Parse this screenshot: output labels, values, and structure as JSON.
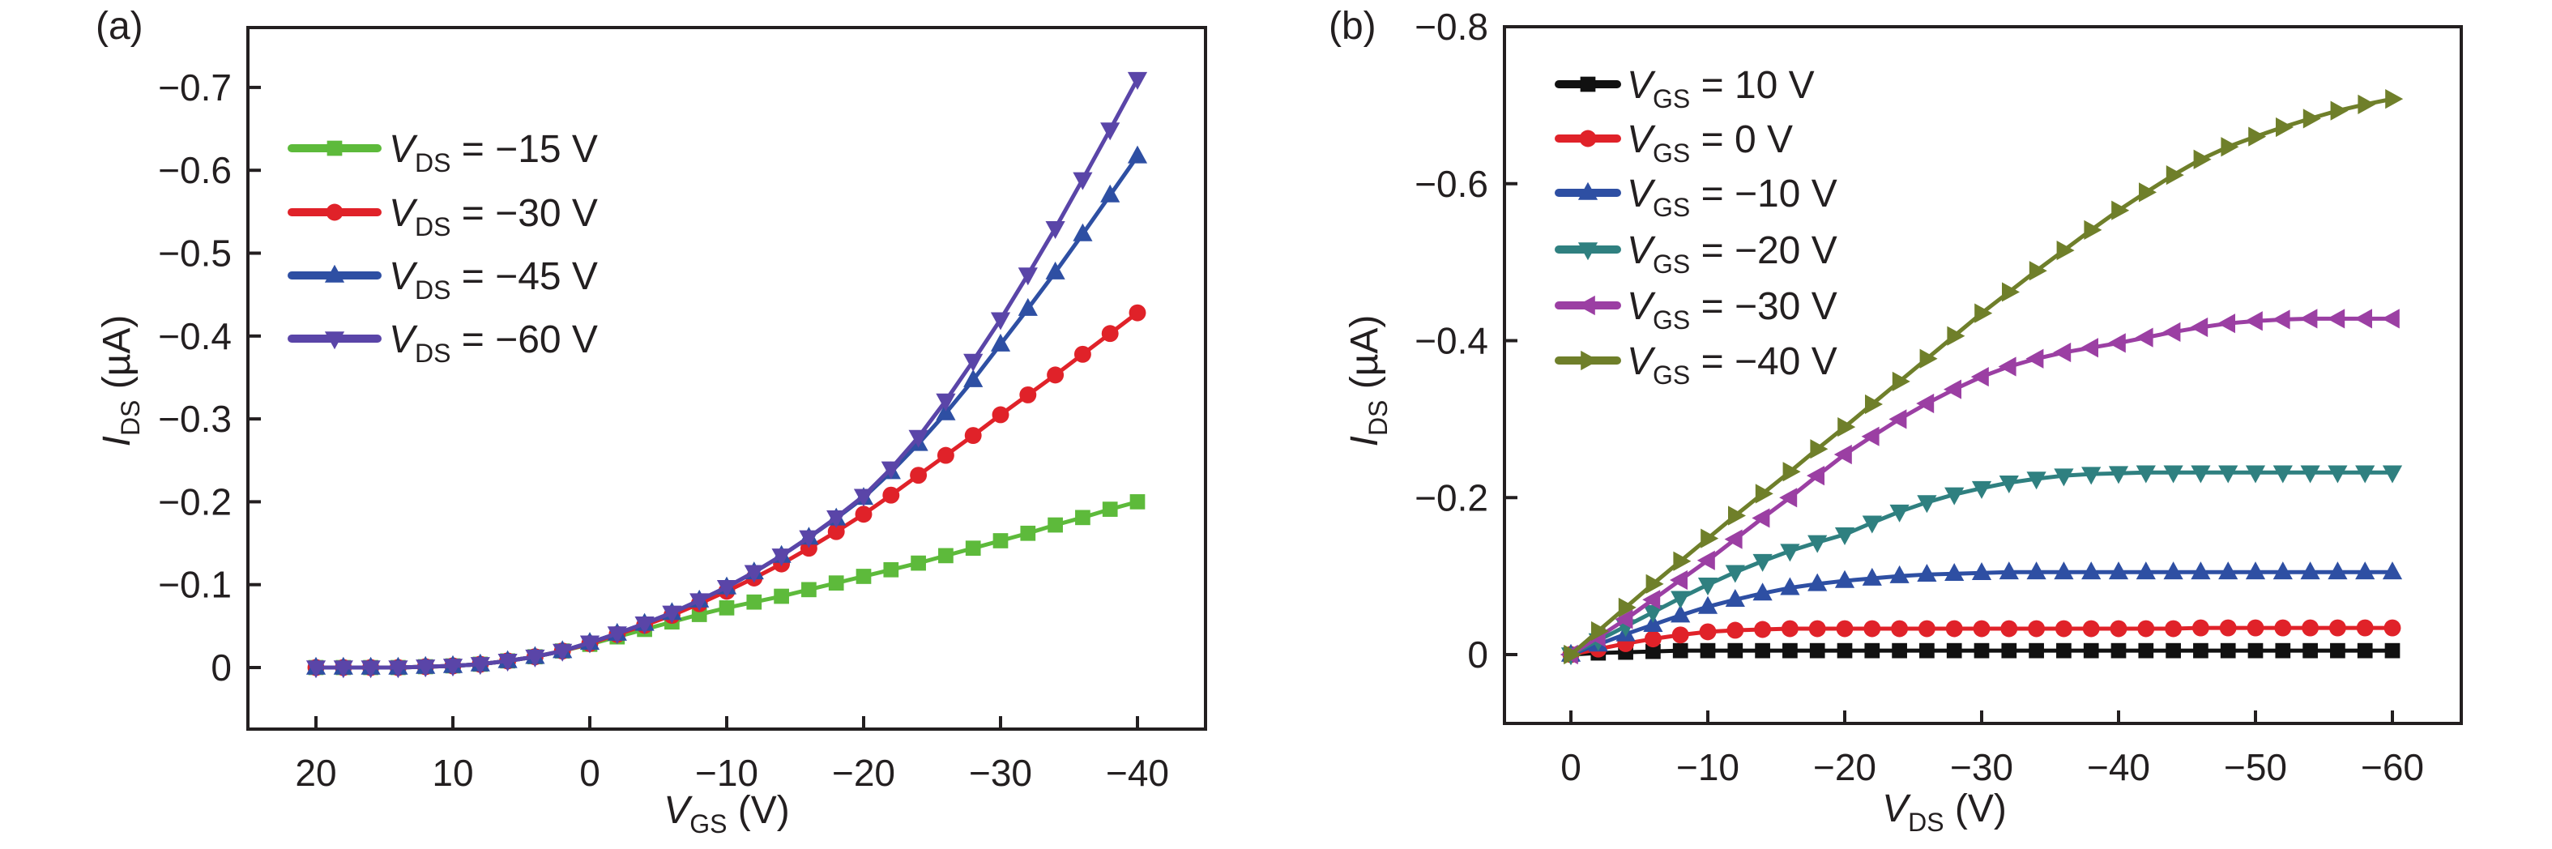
{
  "chart_data": [
    {
      "panel": "(a)",
      "type": "line",
      "title": "",
      "xlabel": {
        "main": "V",
        "sub": "GS",
        "unit": " (V)"
      },
      "ylabel": {
        "main": "I",
        "sub": "DS",
        "unit": " (µA)"
      },
      "xlim": [
        25,
        -45
      ],
      "ylim": [
        0.075,
        -0.77
      ],
      "xticks": [
        20,
        10,
        0,
        -10,
        -20,
        -30,
        -40
      ],
      "xtick_labels": [
        "20",
        "10",
        "0",
        "−10",
        "−20",
        "−30",
        "−40"
      ],
      "yticks": [
        0,
        -0.1,
        -0.2,
        -0.3,
        -0.4,
        -0.5,
        -0.6,
        -0.7
      ],
      "ytick_labels": [
        "0",
        "−0.1",
        "−0.2",
        "−0.3",
        "−0.4",
        "−0.5",
        "−0.6",
        "−0.7"
      ],
      "grid": false,
      "legend_position": "upper-left",
      "x": [
        20,
        18,
        16,
        14,
        12,
        10,
        8,
        6,
        4,
        2,
        0,
        -2,
        -4,
        -6,
        -8,
        -10,
        -12,
        -14,
        -16,
        -18,
        -20,
        -22,
        -24,
        -26,
        -28,
        -30,
        -32,
        -34,
        -36,
        -38,
        -40
      ],
      "series": [
        {
          "name": "V_DS = −15 V",
          "legend": {
            "main": "V",
            "sub": "DS",
            "rest": " = −15 V"
          },
          "marker": "square",
          "color": "#5dba3b",
          "values": [
            0,
            0,
            0,
            0,
            -0.001,
            -0.002,
            -0.004,
            -0.008,
            -0.013,
            -0.02,
            -0.028,
            -0.037,
            -0.046,
            -0.055,
            -0.064,
            -0.072,
            -0.079,
            -0.086,
            -0.094,
            -0.102,
            -0.11,
            -0.118,
            -0.126,
            -0.135,
            -0.144,
            -0.153,
            -0.162,
            -0.172,
            -0.181,
            -0.191,
            -0.2
          ]
        },
        {
          "name": "V_DS = −30 V",
          "legend": {
            "main": "V",
            "sub": "DS",
            "rest": " = −30 V"
          },
          "marker": "circle",
          "color": "#e02229",
          "values": [
            0,
            0,
            0,
            0,
            -0.001,
            -0.002,
            -0.004,
            -0.008,
            -0.013,
            -0.02,
            -0.029,
            -0.04,
            -0.051,
            -0.063,
            -0.077,
            -0.092,
            -0.108,
            -0.125,
            -0.144,
            -0.164,
            -0.185,
            -0.208,
            -0.232,
            -0.256,
            -0.28,
            -0.305,
            -0.329,
            -0.353,
            -0.378,
            -0.403,
            -0.428
          ]
        },
        {
          "name": "V_DS = −45 V",
          "legend": {
            "main": "V",
            "sub": "DS",
            "rest": " = −45 V"
          },
          "marker": "triangle-up",
          "color": "#2e4fa3",
          "values": [
            0,
            0,
            0,
            0,
            -0.001,
            -0.002,
            -0.004,
            -0.008,
            -0.013,
            -0.02,
            -0.03,
            -0.041,
            -0.053,
            -0.066,
            -0.081,
            -0.097,
            -0.115,
            -0.135,
            -0.157,
            -0.18,
            -0.205,
            -0.236,
            -0.27,
            -0.307,
            -0.347,
            -0.39,
            -0.433,
            -0.477,
            -0.523,
            -0.57,
            -0.617
          ]
        },
        {
          "name": "V_DS = −60 V",
          "legend": {
            "main": "V",
            "sub": "DS",
            "rest": " = −60 V"
          },
          "marker": "triangle-down",
          "color": "#5a45a8",
          "values": [
            0,
            0,
            0,
            0,
            -0.001,
            -0.002,
            -0.004,
            -0.008,
            -0.013,
            -0.02,
            -0.03,
            -0.041,
            -0.053,
            -0.066,
            -0.081,
            -0.097,
            -0.115,
            -0.135,
            -0.157,
            -0.181,
            -0.207,
            -0.24,
            -0.278,
            -0.322,
            -0.37,
            -0.42,
            -0.474,
            -0.53,
            -0.589,
            -0.649,
            -0.71
          ]
        }
      ]
    },
    {
      "panel": "(b)",
      "type": "line",
      "title": "",
      "xlabel": {
        "main": "V",
        "sub": "DS",
        "unit": " (V)"
      },
      "ylabel": {
        "main": "I",
        "sub": "DS",
        "unit": " (µA)"
      },
      "xlim": [
        5,
        -65
      ],
      "ylim": [
        0.088,
        -0.8
      ],
      "xticks": [
        0,
        -10,
        -20,
        -30,
        -40,
        -50,
        -60
      ],
      "xtick_labels": [
        "0",
        "−10",
        "−20",
        "−30",
        "−40",
        "−50",
        "−60"
      ],
      "yticks": [
        0,
        -0.2,
        -0.4,
        -0.6,
        -0.8
      ],
      "ytick_labels": [
        "0",
        "−0.2",
        "−0.4",
        "−0.6",
        "−0.8"
      ],
      "grid": false,
      "legend_position": "upper-left",
      "x": [
        0,
        -2,
        -4,
        -6,
        -8,
        -10,
        -12,
        -14,
        -16,
        -18,
        -20,
        -22,
        -24,
        -26,
        -28,
        -30,
        -32,
        -34,
        -36,
        -38,
        -40,
        -42,
        -44,
        -46,
        -48,
        -50,
        -52,
        -54,
        -56,
        -58,
        -60
      ],
      "series": [
        {
          "name": "V_GS = 10 V",
          "legend": {
            "main": "V",
            "sub": "GS",
            "rest": " = 10 V"
          },
          "marker": "square",
          "color": "#111111",
          "values": [
            0,
            -0.002,
            -0.003,
            -0.004,
            -0.005,
            -0.005,
            -0.005,
            -0.005,
            -0.005,
            -0.005,
            -0.005,
            -0.005,
            -0.005,
            -0.005,
            -0.005,
            -0.005,
            -0.005,
            -0.005,
            -0.005,
            -0.005,
            -0.005,
            -0.005,
            -0.005,
            -0.005,
            -0.005,
            -0.005,
            -0.005,
            -0.005,
            -0.005,
            -0.005,
            -0.005
          ]
        },
        {
          "name": "V_GS = 0 V",
          "legend": {
            "main": "V",
            "sub": "GS",
            "rest": " = 0 V"
          },
          "marker": "circle",
          "color": "#e02229",
          "values": [
            0,
            -0.007,
            -0.014,
            -0.02,
            -0.025,
            -0.029,
            -0.031,
            -0.032,
            -0.033,
            -0.033,
            -0.033,
            -0.033,
            -0.033,
            -0.033,
            -0.033,
            -0.033,
            -0.033,
            -0.033,
            -0.033,
            -0.033,
            -0.033,
            -0.033,
            -0.033,
            -0.034,
            -0.034,
            -0.034,
            -0.034,
            -0.034,
            -0.034,
            -0.034,
            -0.034
          ]
        },
        {
          "name": "V_GS = −10 V",
          "legend": {
            "main": "V",
            "sub": "GS",
            "rest": " = −10 V"
          },
          "marker": "triangle-up",
          "color": "#2e4fa3",
          "values": [
            0,
            -0.013,
            -0.026,
            -0.038,
            -0.05,
            -0.061,
            -0.07,
            -0.078,
            -0.085,
            -0.09,
            -0.094,
            -0.097,
            -0.1,
            -0.102,
            -0.103,
            -0.104,
            -0.105,
            -0.105,
            -0.105,
            -0.105,
            -0.105,
            -0.105,
            -0.105,
            -0.105,
            -0.105,
            -0.105,
            -0.105,
            -0.105,
            -0.105,
            -0.105,
            -0.105
          ]
        },
        {
          "name": "V_GS = −20 V",
          "legend": {
            "main": "V",
            "sub": "GS",
            "rest": " = −20 V"
          },
          "marker": "triangle-down",
          "color": "#2f8080",
          "values": [
            0,
            -0.018,
            -0.036,
            -0.054,
            -0.072,
            -0.089,
            -0.105,
            -0.119,
            -0.132,
            -0.143,
            -0.153,
            -0.168,
            -0.182,
            -0.194,
            -0.204,
            -0.212,
            -0.219,
            -0.224,
            -0.228,
            -0.23,
            -0.231,
            -0.232,
            -0.232,
            -0.232,
            -0.232,
            -0.232,
            -0.232,
            -0.232,
            -0.232,
            -0.232,
            -0.232
          ]
        },
        {
          "name": "V_GS = −30 V",
          "legend": {
            "main": "V",
            "sub": "GS",
            "rest": " = −30 V"
          },
          "marker": "triangle-left",
          "color": "#9b3fa3",
          "values": [
            0,
            -0.022,
            -0.045,
            -0.07,
            -0.095,
            -0.12,
            -0.147,
            -0.174,
            -0.2,
            -0.228,
            -0.255,
            -0.278,
            -0.3,
            -0.32,
            -0.338,
            -0.354,
            -0.367,
            -0.377,
            -0.385,
            -0.391,
            -0.397,
            -0.404,
            -0.411,
            -0.417,
            -0.422,
            -0.425,
            -0.427,
            -0.428,
            -0.428,
            -0.428,
            -0.428
          ]
        },
        {
          "name": "V_GS = −40 V",
          "legend": {
            "main": "V",
            "sub": "GS",
            "rest": " = −40 V"
          },
          "marker": "triangle-right",
          "color": "#6f7f2a",
          "values": [
            0,
            -0.03,
            -0.06,
            -0.09,
            -0.119,
            -0.148,
            -0.177,
            -0.205,
            -0.233,
            -0.262,
            -0.29,
            -0.319,
            -0.348,
            -0.377,
            -0.406,
            -0.435,
            -0.462,
            -0.489,
            -0.515,
            -0.541,
            -0.566,
            -0.589,
            -0.611,
            -0.631,
            -0.647,
            -0.66,
            -0.672,
            -0.683,
            -0.693,
            -0.701,
            -0.708
          ]
        }
      ]
    }
  ]
}
